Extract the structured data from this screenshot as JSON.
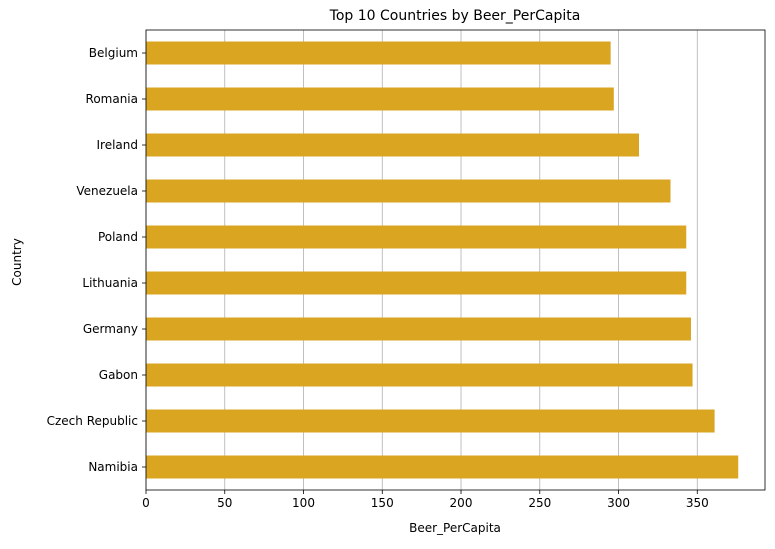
{
  "chart_data": {
    "type": "bar",
    "orientation": "horizontal",
    "title": "Top 10 Countries by Beer_PerCapita",
    "xlabel": "Beer_PerCapita",
    "ylabel": "Country",
    "categories": [
      "Belgium",
      "Romania",
      "Ireland",
      "Venezuela",
      "Poland",
      "Lithuania",
      "Germany",
      "Gabon",
      "Czech Republic",
      "Namibia"
    ],
    "values": [
      295,
      297,
      313,
      333,
      343,
      343,
      346,
      347,
      361,
      376
    ],
    "xlim": [
      0,
      393
    ],
    "xticks": [
      0,
      50,
      100,
      150,
      200,
      250,
      300,
      350
    ],
    "grid": "vertical",
    "bar_color": "#DAA520",
    "grid_color": "#b0b0b0"
  }
}
